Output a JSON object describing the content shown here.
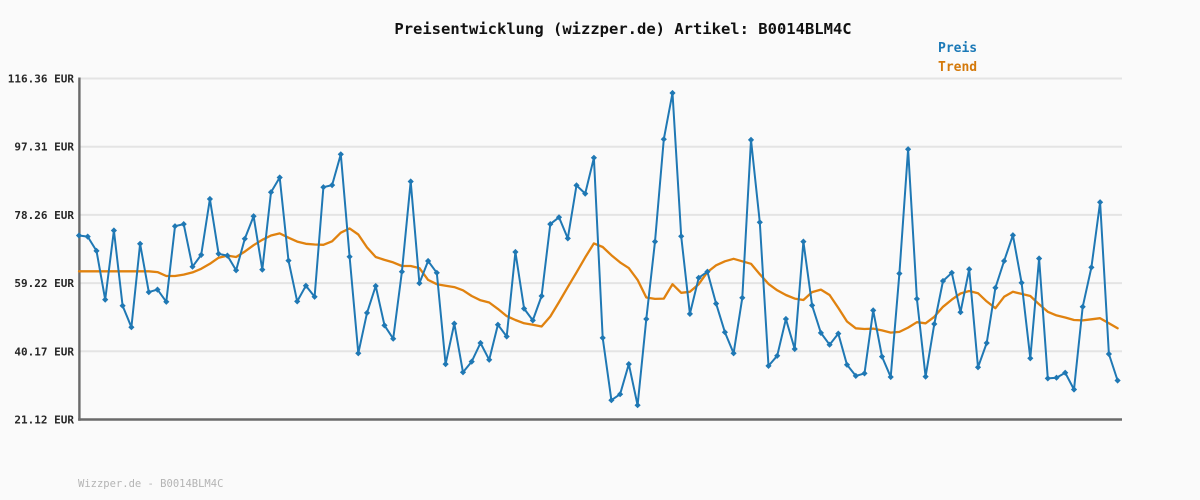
{
  "header": {
    "title": "Preisentwicklung (wizzper.de) Artikel: B0014BLM4C"
  },
  "legend": [
    {
      "label": "Preis",
      "color": "#1b79b7"
    },
    {
      "label": "Trend",
      "color": "#d4790a"
    }
  ],
  "footer": {
    "credit": "Wizzper.de - B0014BLM4C"
  },
  "colors": {
    "page_background": "#fafafa",
    "gridline": "#e4e4e4",
    "spine": "#6a6a6a",
    "tick_label": "#262626",
    "price_line": "#1f78b4",
    "trend_line": "#e0820f"
  },
  "chart_data": {
    "type": "line",
    "title": "Preisentwicklung (wizzper.de) Artikel: B0014BLM4C",
    "xlabel": "",
    "ylabel": "",
    "x_axis_labels": "none visible (unlabeled time axis, 120 samples)",
    "ylim": [
      21.12,
      116.36
    ],
    "grid": "horizontal only",
    "legend_position": "top-right",
    "y_ticks": [
      {
        "value": 116.36,
        "label": "116.36 EUR"
      },
      {
        "value": 97.31,
        "label": "97.31 EUR"
      },
      {
        "value": 78.26,
        "label": "78.26 EUR"
      },
      {
        "value": 59.22,
        "label": "59.22 EUR"
      },
      {
        "value": 40.17,
        "label": "40.17 EUR"
      },
      {
        "value": 21.12,
        "label": "21.12 EUR"
      }
    ],
    "series": [
      {
        "name": "Preis",
        "color": "#1f78b4",
        "marker": "diamond",
        "values": [
          72.5,
          72.2,
          68.2,
          54.6,
          73.9,
          52.9,
          46.9,
          70.2,
          56.7,
          57.4,
          54.0,
          75.1,
          75.7,
          63.8,
          67.1,
          82.7,
          67.4,
          66.9,
          62.8,
          71.6,
          77.9,
          63.0,
          84.6,
          88.7,
          65.5,
          54.1,
          58.5,
          55.4,
          86.0,
          86.6,
          95.2,
          66.6,
          39.6,
          50.9,
          58.4,
          47.4,
          43.7,
          62.4,
          87.6,
          59.2,
          65.4,
          62.1,
          36.6,
          47.9,
          34.3,
          37.3,
          42.5,
          37.8,
          47.6,
          44.3,
          67.9,
          52.1,
          48.8,
          55.6,
          75.7,
          77.6,
          71.7,
          86.5,
          84.2,
          94.2,
          43.9,
          26.5,
          28.2,
          36.6,
          25.1,
          49.2,
          70.8,
          99.4,
          112.3,
          72.3,
          50.6,
          60.7,
          62.4,
          53.5,
          45.5,
          39.6,
          55.1,
          99.2,
          76.2,
          36.1,
          38.9,
          49.2,
          40.8,
          70.8,
          53.0,
          45.3,
          42.0,
          45.1,
          36.4,
          33.3,
          34.0,
          51.6,
          38.7,
          33.0,
          61.9,
          96.6,
          54.8,
          33.1,
          47.8,
          59.8,
          62.1,
          51.1,
          63.1,
          35.7,
          42.5,
          57.9,
          65.4,
          72.6,
          59.3,
          38.2,
          66.1,
          32.6,
          32.8,
          34.2,
          29.5,
          52.6,
          63.6,
          81.8,
          39.4,
          32.0
        ]
      },
      {
        "name": "Trend",
        "color": "#e0820f",
        "marker": "none",
        "values": [
          62.5,
          62.5,
          62.5,
          62.5,
          62.5,
          62.5,
          62.5,
          62.5,
          62.5,
          62.3,
          61.2,
          61.2,
          61.6,
          62.2,
          63.2,
          64.6,
          66.3,
          66.9,
          66.5,
          68.0,
          69.8,
          71.3,
          72.5,
          73.1,
          71.9,
          70.8,
          70.2,
          70.0,
          69.9,
          70.9,
          73.3,
          74.5,
          72.8,
          69.2,
          66.5,
          65.7,
          65.0,
          64.0,
          64.0,
          63.4,
          60.1,
          58.9,
          58.5,
          58.1,
          57.2,
          55.6,
          54.4,
          53.8,
          52.0,
          50.0,
          48.9,
          48.0,
          47.6,
          47.1,
          49.9,
          53.9,
          58.1,
          62.2,
          66.4,
          70.3,
          69.3,
          67.0,
          65.0,
          63.4,
          60.1,
          55.2,
          54.8,
          54.9,
          58.9,
          56.5,
          56.8,
          58.9,
          62.3,
          64.2,
          65.3,
          66.0,
          65.3,
          64.6,
          61.7,
          59.0,
          57.2,
          55.9,
          54.9,
          54.5,
          56.7,
          57.4,
          55.9,
          52.3,
          48.5,
          46.6,
          46.4,
          46.5,
          46.0,
          45.4,
          45.6,
          46.8,
          48.3,
          48.0,
          49.8,
          52.6,
          54.6,
          56.3,
          57.0,
          56.4,
          54.1,
          52.2,
          55.4,
          56.8,
          56.2,
          55.6,
          53.3,
          51.2,
          50.2,
          49.6,
          48.9,
          48.8,
          49.1,
          49.4,
          48.0,
          46.6
        ]
      }
    ]
  }
}
